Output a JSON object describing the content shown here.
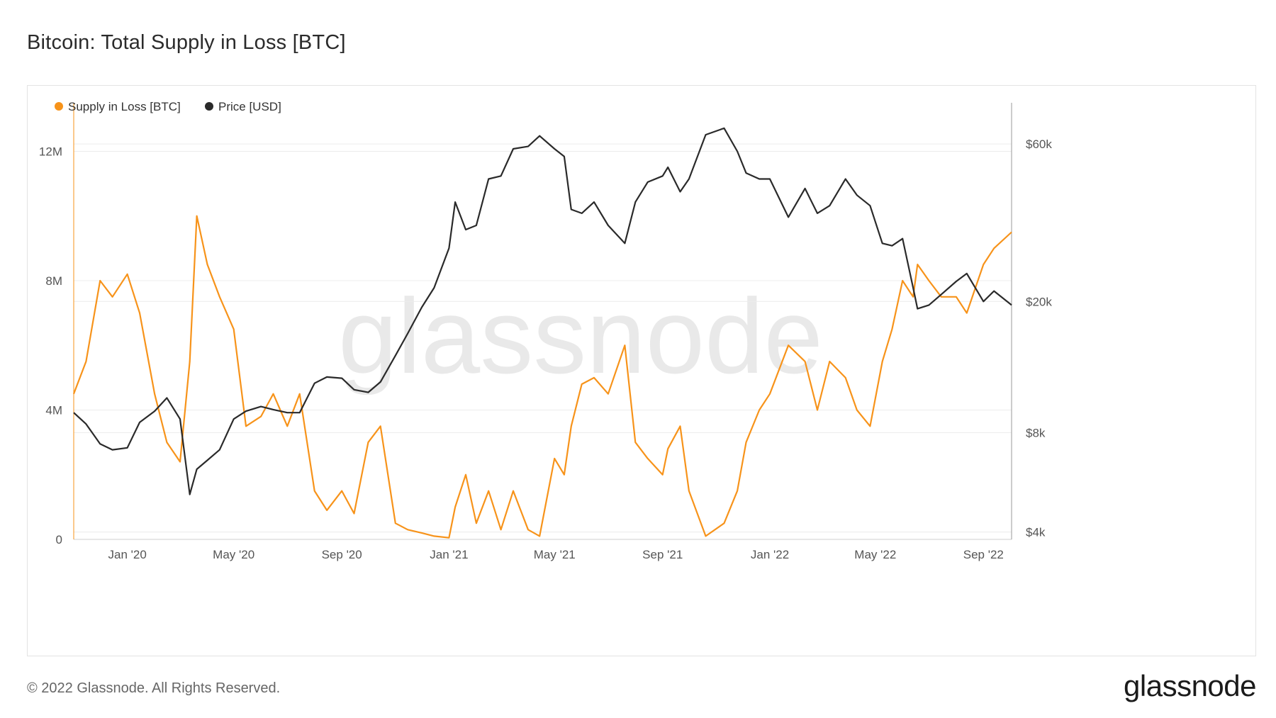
{
  "title": "Bitcoin: Total Supply in Loss [BTC]",
  "footer": {
    "copyright": "© 2022 Glassnode. All Rights Reserved.",
    "logo": "glassnode"
  },
  "watermark": "glassnode",
  "colors": {
    "supply": "#f7931a",
    "price": "#2a2a2a",
    "grid": "#ececec",
    "axis_left": "#f7931a",
    "axis_right": "#9a9a9a"
  },
  "chart_data": {
    "type": "line",
    "legend": [
      "Supply in Loss [BTC]",
      "Price [USD]"
    ],
    "legend_position": "top-left",
    "grid": true,
    "x": [
      "2019-11-01",
      "2019-11-15",
      "2019-12-01",
      "2019-12-15",
      "2020-01-01",
      "2020-01-15",
      "2020-02-01",
      "2020-02-15",
      "2020-03-01",
      "2020-03-12",
      "2020-03-20",
      "2020-04-01",
      "2020-04-15",
      "2020-05-01",
      "2020-05-15",
      "2020-06-01",
      "2020-06-15",
      "2020-07-01",
      "2020-07-15",
      "2020-08-01",
      "2020-08-15",
      "2020-09-01",
      "2020-09-15",
      "2020-10-01",
      "2020-10-15",
      "2020-11-01",
      "2020-11-15",
      "2020-12-01",
      "2020-12-15",
      "2021-01-01",
      "2021-01-08",
      "2021-01-20",
      "2021-02-01",
      "2021-02-15",
      "2021-03-01",
      "2021-03-15",
      "2021-04-01",
      "2021-04-14",
      "2021-05-01",
      "2021-05-12",
      "2021-05-20",
      "2021-06-01",
      "2021-06-15",
      "2021-07-01",
      "2021-07-20",
      "2021-08-01",
      "2021-08-15",
      "2021-09-01",
      "2021-09-07",
      "2021-09-21",
      "2021-10-01",
      "2021-10-20",
      "2021-11-10",
      "2021-11-25",
      "2021-12-05",
      "2021-12-20",
      "2022-01-01",
      "2022-01-22",
      "2022-02-10",
      "2022-02-24",
      "2022-03-10",
      "2022-03-28",
      "2022-04-10",
      "2022-04-25",
      "2022-05-09",
      "2022-05-20",
      "2022-06-01",
      "2022-06-13",
      "2022-06-18",
      "2022-07-01",
      "2022-07-15",
      "2022-08-01",
      "2022-08-13",
      "2022-09-01",
      "2022-09-13",
      "2022-10-03"
    ],
    "series": [
      {
        "name": "Supply in Loss [BTC]",
        "axis": "left",
        "values": [
          4500000,
          5500000,
          8000000,
          7500000,
          8200000,
          7000000,
          4500000,
          3000000,
          2400000,
          5500000,
          10000000,
          8500000,
          7500000,
          6500000,
          3500000,
          3800000,
          4500000,
          3500000,
          4500000,
          1500000,
          900000,
          1500000,
          800000,
          3000000,
          3500000,
          500000,
          300000,
          200000,
          100000,
          50000,
          1000000,
          2000000,
          500000,
          1500000,
          300000,
          1500000,
          300000,
          100000,
          2500000,
          2000000,
          3500000,
          4800000,
          5000000,
          4500000,
          6000000,
          3000000,
          2500000,
          2000000,
          2800000,
          3500000,
          1500000,
          100000,
          500000,
          1500000,
          3000000,
          4000000,
          4500000,
          6000000,
          5500000,
          4000000,
          5500000,
          5000000,
          4000000,
          3500000,
          5500000,
          6500000,
          8000000,
          7500000,
          8500000,
          8000000,
          7500000,
          7500000,
          7000000,
          8500000,
          9000000,
          9500000
        ]
      },
      {
        "name": "Price [USD]",
        "axis": "right",
        "values": [
          9200,
          8500,
          7400,
          7100,
          7200,
          8600,
          9300,
          10200,
          8800,
          5200,
          6200,
          6600,
          7100,
          8800,
          9300,
          9600,
          9400,
          9200,
          9200,
          11300,
          11800,
          11700,
          10800,
          10600,
          11400,
          13700,
          16000,
          19200,
          22000,
          29000,
          40000,
          33000,
          34000,
          47000,
          48000,
          58000,
          59000,
          63500,
          58000,
          55000,
          38000,
          37000,
          40000,
          34000,
          30000,
          40000,
          46000,
          48000,
          51000,
          43000,
          47000,
          64000,
          67000,
          57000,
          49000,
          47000,
          47000,
          36000,
          44000,
          37000,
          39000,
          47000,
          42000,
          39000,
          30000,
          29500,
          31000,
          22000,
          19000,
          19500,
          21000,
          23000,
          24300,
          20000,
          21500,
          19500
        ]
      }
    ],
    "y_left": {
      "ticks": [
        "0",
        "4M",
        "8M",
        "12M"
      ],
      "ylim": [
        0,
        13500000
      ]
    },
    "y_right": {
      "scale": "log",
      "ticks": [
        "$4k",
        "$8k",
        "$20k",
        "$60k"
      ],
      "tick_values": [
        4000,
        8000,
        20000,
        60000
      ],
      "ylim": [
        3800,
        80000
      ]
    },
    "x_ticks": [
      {
        "label": "Jan '20",
        "date": "2020-01-01"
      },
      {
        "label": "May '20",
        "date": "2020-05-01"
      },
      {
        "label": "Sep '20",
        "date": "2020-09-01"
      },
      {
        "label": "Jan '21",
        "date": "2021-01-01"
      },
      {
        "label": "May '21",
        "date": "2021-05-01"
      },
      {
        "label": "Sep '21",
        "date": "2021-09-01"
      },
      {
        "label": "Jan '22",
        "date": "2022-01-01"
      },
      {
        "label": "May '22",
        "date": "2022-05-01"
      },
      {
        "label": "Sep '22",
        "date": "2022-09-01"
      }
    ],
    "xlim": [
      "2019-11-01",
      "2022-10-03"
    ]
  }
}
